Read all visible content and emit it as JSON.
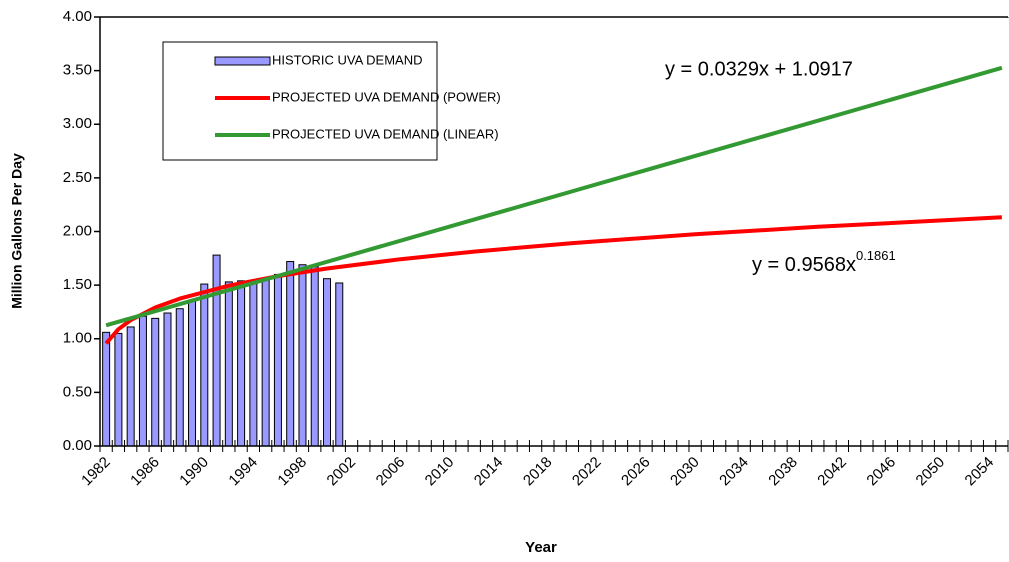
{
  "chart_data": {
    "type": "bar",
    "x_label": "Year",
    "y_label": "Million Gallons Per Day",
    "categories": [
      "1982",
      null,
      null,
      null,
      "1986",
      null,
      null,
      null,
      "1990",
      null,
      null,
      null,
      "1994",
      null,
      null,
      null,
      "1998",
      null,
      null,
      null,
      "2002",
      null,
      null,
      null,
      "2006",
      null,
      null,
      null,
      "2010",
      null,
      null,
      null,
      "2014",
      null,
      null,
      null,
      "2018",
      null,
      null,
      null,
      "2022",
      null,
      null,
      null,
      "2026",
      null,
      null,
      null,
      "2030",
      null,
      null,
      null,
      "2034",
      null,
      null,
      null,
      "2038",
      null,
      null,
      null,
      "2042",
      null,
      null,
      null,
      "2046",
      null,
      null,
      null,
      "2050",
      null,
      null,
      null,
      "2054",
      null
    ],
    "series": [
      {
        "name": "HISTORIC UVA DEMAND",
        "type": "bar",
        "color": "#9999ff",
        "values": [
          1.06,
          1.05,
          1.11,
          1.21,
          1.19,
          1.24,
          1.28,
          1.36,
          1.51,
          1.78,
          1.53,
          1.54,
          1.53,
          1.56,
          1.6,
          1.72,
          1.69,
          1.67,
          1.56,
          1.52,
          null,
          null,
          null,
          null,
          null,
          null,
          null,
          null,
          null,
          null,
          null,
          null,
          null,
          null,
          null,
          null,
          null,
          null,
          null,
          null,
          null,
          null,
          null,
          null,
          null,
          null,
          null,
          null,
          null,
          null,
          null,
          null,
          null,
          null,
          null,
          null,
          null,
          null,
          null,
          null,
          null,
          null,
          null,
          null,
          null,
          null,
          null,
          null,
          null,
          null,
          null,
          null,
          null,
          null
        ]
      },
      {
        "name": "PROJECTED UVA DEMAND (POWER)",
        "type": "line",
        "color": "#ff0000",
        "x": [
          1982,
          1983,
          1984,
          1986,
          1988,
          1992,
          1996,
          2000,
          2006,
          2012,
          2020,
          2030,
          2040,
          2055
        ],
        "values": [
          0.957,
          1.089,
          1.174,
          1.291,
          1.374,
          1.495,
          1.584,
          1.655,
          1.742,
          1.813,
          1.892,
          1.974,
          2.044,
          2.132
        ]
      },
      {
        "name": "PROJECTED UVA DEMAND (LINEAR)",
        "type": "line",
        "color": "#339933",
        "x": [
          1982,
          2055
        ],
        "values": [
          1.125,
          3.526
        ]
      }
    ],
    "ylim": [
      0,
      4
    ],
    "yticks": [
      {
        "value": 0,
        "label": "0.00"
      },
      {
        "value": 0.5,
        "label": "0.50"
      },
      {
        "value": 1,
        "label": "1.00"
      },
      {
        "value": 1.5,
        "label": "1.50"
      },
      {
        "value": 2,
        "label": "2.00"
      },
      {
        "value": 2.5,
        "label": "2.50"
      },
      {
        "value": 3,
        "label": "3.00"
      },
      {
        "value": 3.5,
        "label": "3.50"
      },
      {
        "value": 4,
        "label": "4.00"
      }
    ],
    "annotations": {
      "linear_equation": "y = 0.0329x + 1.0917",
      "power_equation": "y = 0.9568x",
      "power_exponent": "0.1861"
    }
  }
}
